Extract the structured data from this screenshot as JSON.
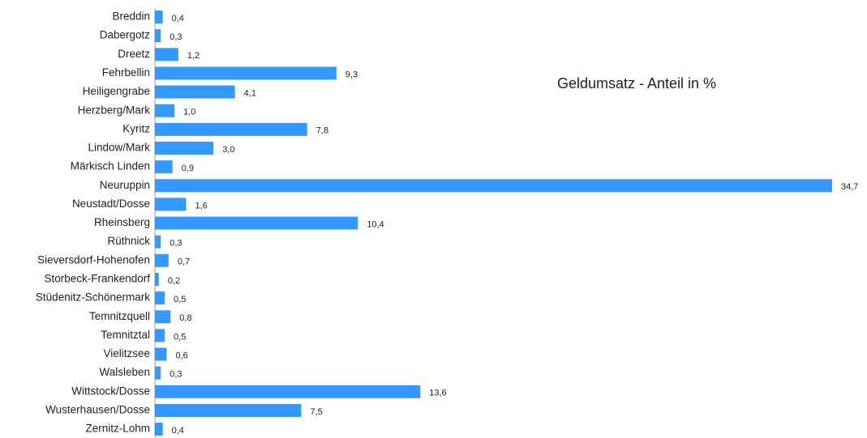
{
  "chart_data": {
    "type": "bar",
    "orientation": "horizontal",
    "title": "Geldumsatz - Anteil in %",
    "categories": [
      "Breddin",
      "Dabergotz",
      "Dreetz",
      "Fehrbellin",
      "Heiligengrabe",
      "Herzberg/Mark",
      "Kyritz",
      "Lindow/Mark",
      "Märkisch Linden",
      "Neuruppin",
      "Neustadt/Dosse",
      "Rheinsberg",
      "Rüthnick",
      "Sieversdorf-Hohenofen",
      "Storbeck-Frankendorf",
      "Stüdenitz-Schönermark",
      "Temnitzquell",
      "Temnitztal",
      "Vielitzsee",
      "Walsleben",
      "Wittstock/Dosse",
      "Wusterhausen/Dosse",
      "Zernitz-Lohm"
    ],
    "values": [
      0.4,
      0.3,
      1.2,
      9.3,
      4.1,
      1.0,
      7.8,
      3.0,
      0.9,
      34.7,
      1.6,
      10.4,
      0.3,
      0.7,
      0.2,
      0.5,
      0.8,
      0.5,
      0.6,
      0.3,
      13.6,
      7.5,
      0.4
    ],
    "value_labels": [
      "0,4",
      "0,3",
      "1,2",
      "9,3",
      "4,1",
      "1,0",
      "7,8",
      "3,0",
      "0,9",
      "34,7",
      "1,6",
      "10,4",
      "0,3",
      "0,7",
      "0,2",
      "0,5",
      "0,8",
      "0,5",
      "0,6",
      "0,3",
      "13,6",
      "7,5",
      "0,4"
    ],
    "color": "#3399ff"
  }
}
